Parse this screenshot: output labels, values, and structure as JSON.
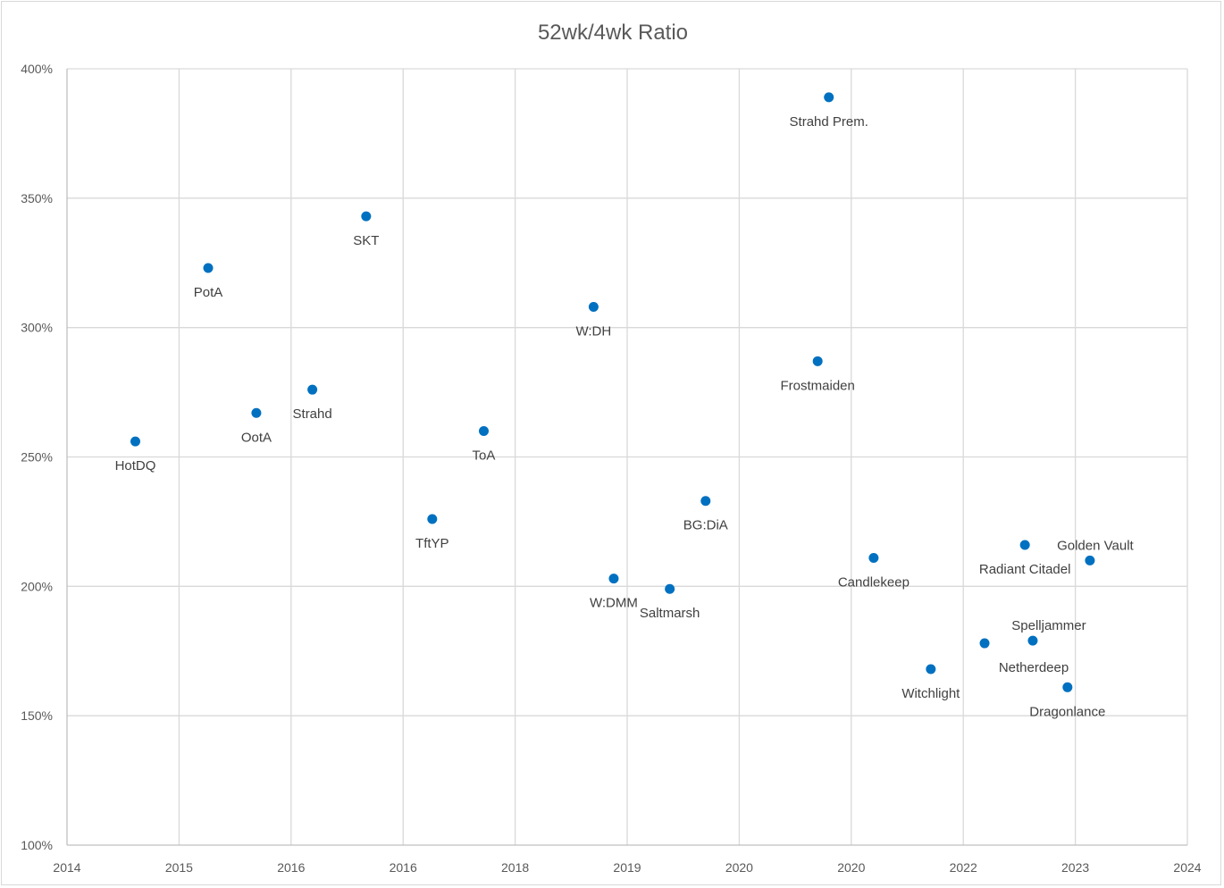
{
  "chart_data": {
    "type": "scatter",
    "title": "52wk/4wk Ratio",
    "xlabel": "",
    "ylabel": "",
    "x_tick_labels": [
      "2014",
      "2015",
      "2016",
      "2016",
      "2018",
      "2019",
      "2020",
      "2020",
      "2022",
      "2023",
      "2024"
    ],
    "xlim": [
      0,
      10
    ],
    "y_tick_labels": [
      "100%",
      "150%",
      "200%",
      "250%",
      "300%",
      "350%",
      "400%"
    ],
    "ylim": [
      1.0,
      4.0
    ],
    "y_ticks": [
      1.0,
      1.5,
      2.0,
      2.5,
      3.0,
      3.5,
      4.0
    ],
    "grid": true,
    "legend": "none",
    "marker_color": "#0070c0",
    "points": [
      {
        "label": "HotDQ",
        "x": 0.61,
        "y": 2.56,
        "label_pos": "below"
      },
      {
        "label": "PotA",
        "x": 1.26,
        "y": 3.23,
        "label_pos": "below"
      },
      {
        "label": "OotA",
        "x": 1.69,
        "y": 2.67,
        "label_pos": "below"
      },
      {
        "label": "Strahd",
        "x": 2.19,
        "y": 2.76,
        "label_pos": "below"
      },
      {
        "label": "SKT",
        "x": 2.67,
        "y": 3.43,
        "label_pos": "below"
      },
      {
        "label": "TftYP",
        "x": 3.26,
        "y": 2.26,
        "label_pos": "below"
      },
      {
        "label": "ToA",
        "x": 3.72,
        "y": 2.6,
        "label_pos": "below"
      },
      {
        "label": "W:DH",
        "x": 4.7,
        "y": 3.08,
        "label_pos": "below"
      },
      {
        "label": "W:DMM",
        "x": 4.88,
        "y": 2.03,
        "label_pos": "below"
      },
      {
        "label": "Saltmarsh",
        "x": 5.38,
        "y": 1.99,
        "label_pos": "below"
      },
      {
        "label": "BG:DiA",
        "x": 5.7,
        "y": 2.33,
        "label_pos": "below"
      },
      {
        "label": "Frostmaiden",
        "x": 6.7,
        "y": 2.87,
        "label_pos": "below"
      },
      {
        "label": "Strahd Prem.",
        "x": 6.8,
        "y": 3.89,
        "label_pos": "below"
      },
      {
        "label": "Candlekeep",
        "x": 7.2,
        "y": 2.11,
        "label_pos": "below"
      },
      {
        "label": "Witchlight",
        "x": 7.71,
        "y": 1.68,
        "label_pos": "below"
      },
      {
        "label": "Netherdeep",
        "x": 8.19,
        "y": 1.78,
        "label_pos": "below"
      },
      {
        "label": "Radiant Citadel",
        "x": 8.55,
        "y": 2.16,
        "label_pos": "below"
      },
      {
        "label": "Spelljammer",
        "x": 8.62,
        "y": 1.79,
        "label_pos": "above"
      },
      {
        "label": "Dragonlance",
        "x": 8.93,
        "y": 1.61,
        "label_pos": "below"
      },
      {
        "label": "Golden Vault",
        "x": 9.13,
        "y": 2.1,
        "label_pos": "above"
      }
    ]
  }
}
